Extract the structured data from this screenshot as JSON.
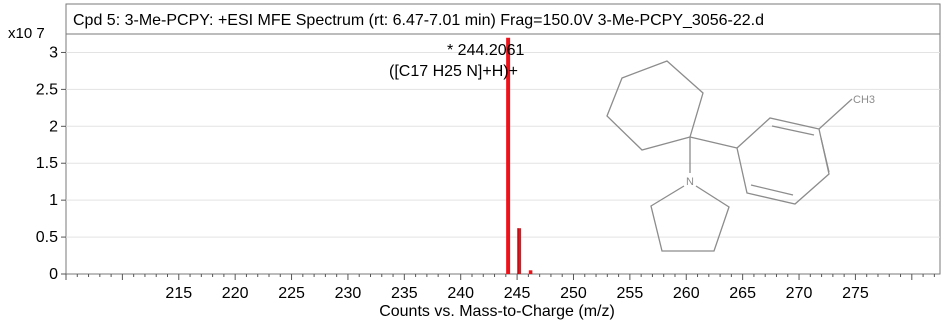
{
  "chart_data": {
    "type": "bar",
    "title": "Cpd 5: 3-Me-PCPY: +ESI MFE Spectrum (rt: 6.47-7.01 min) Frag=150.0V 3-Me-PCPY_3056-22.d",
    "xlabel": "Counts vs. Mass-to-Charge (m/z)",
    "ylabel_multiplier": "x10 7",
    "xlim": [
      205,
      282.5
    ],
    "ylim": [
      0,
      3.25
    ],
    "x_ticks": [
      215,
      220,
      225,
      230,
      235,
      240,
      245,
      250,
      255,
      260,
      265,
      270,
      275
    ],
    "y_ticks": [
      0,
      0.5,
      1,
      1.5,
      2,
      2.5,
      3
    ],
    "peaks": [
      {
        "mz": 244.2061,
        "intensity": 3.2,
        "label": "* 244.2061",
        "formula": "([C17 H25 N]+H)+"
      },
      {
        "mz": 245.2,
        "intensity": 0.62
      },
      {
        "mz": 246.2,
        "intensity": 0.05
      }
    ],
    "peak_color": "#e8141b",
    "structure": {
      "substituent_label": "CH3",
      "heteroatom_label": "N"
    }
  }
}
